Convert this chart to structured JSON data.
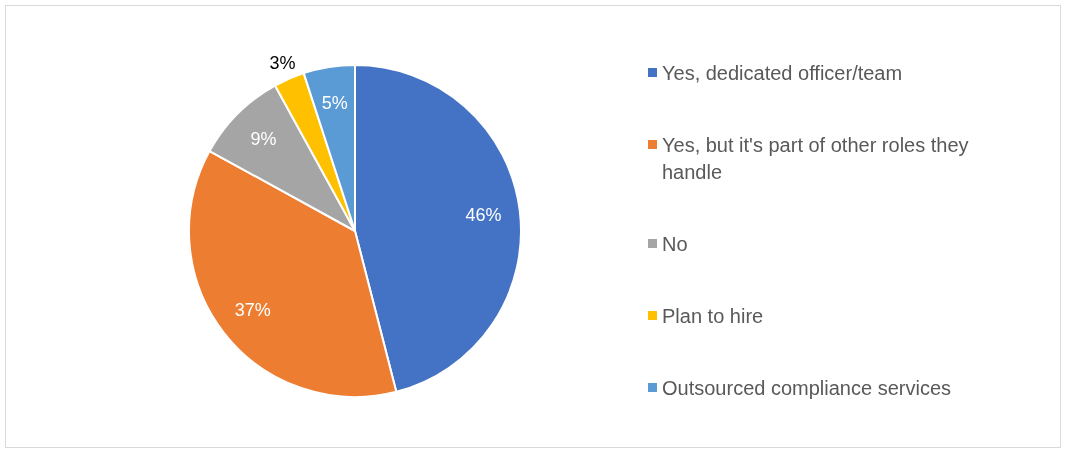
{
  "chart_data": {
    "type": "pie",
    "categories": [
      "Yes, dedicated officer/team",
      "Yes, but it's part of other roles they handle",
      "No",
      "Plan to hire",
      "Outsourced compliance services"
    ],
    "values": [
      46,
      37,
      9,
      3,
      5
    ],
    "colors": [
      "#4472c4",
      "#ed7d31",
      "#a5a5a5",
      "#ffc000",
      "#5b9bd5"
    ],
    "value_labels": [
      "46%",
      "37%",
      "9%",
      "3%",
      "5%"
    ],
    "legend": "right"
  }
}
